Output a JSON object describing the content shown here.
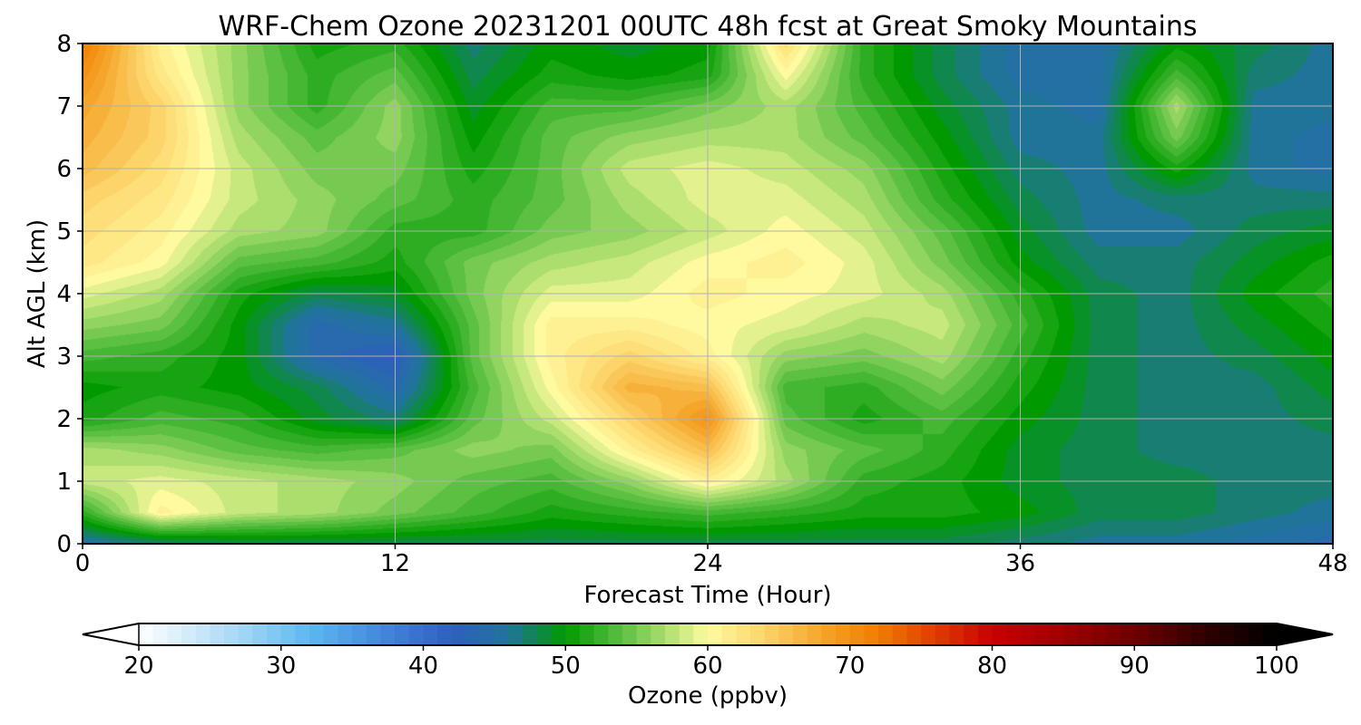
{
  "chart_data": {
    "type": "heatmap",
    "title": "WRF-Chem Ozone  20231201 00UTC 48h fcst at Great Smoky Mountains",
    "xlabel": "Forecast Time (Hour)",
    "ylabel": "Alt AGL (km)",
    "xlim": [
      0,
      48
    ],
    "ylim": [
      0,
      8
    ],
    "x_ticks": [
      "0",
      "12",
      "24",
      "36",
      "48"
    ],
    "y_ticks": [
      "0",
      "1",
      "2",
      "3",
      "4",
      "5",
      "6",
      "7",
      "8"
    ],
    "grid": true,
    "colorbar": {
      "label": "Ozone  (ppbv)",
      "range": [
        20,
        100
      ],
      "ticks": [
        "20",
        "30",
        "40",
        "50",
        "60",
        "70",
        "80",
        "90",
        "100"
      ],
      "extend": "both",
      "orientation": "horizontal",
      "stops": [
        {
          "v": 20,
          "c": "#ffffff"
        },
        {
          "v": 27,
          "c": "#a6d8f5"
        },
        {
          "v": 32,
          "c": "#5bb8f0"
        },
        {
          "v": 38,
          "c": "#3f7fd8"
        },
        {
          "v": 42,
          "c": "#2f5fc0"
        },
        {
          "v": 46,
          "c": "#20749a"
        },
        {
          "v": 50,
          "c": "#009a00"
        },
        {
          "v": 54,
          "c": "#5cc043"
        },
        {
          "v": 58,
          "c": "#c6e87c"
        },
        {
          "v": 60,
          "c": "#fffaa0"
        },
        {
          "v": 64,
          "c": "#fcd46a"
        },
        {
          "v": 68,
          "c": "#f5a52a"
        },
        {
          "v": 72,
          "c": "#f07d00"
        },
        {
          "v": 76,
          "c": "#e03c00"
        },
        {
          "v": 80,
          "c": "#c80000"
        },
        {
          "v": 85,
          "c": "#a00000"
        },
        {
          "v": 90,
          "c": "#6e0000"
        },
        {
          "v": 95,
          "c": "#300000"
        },
        {
          "v": 100,
          "c": "#000000"
        }
      ]
    },
    "ozone_ppbv_hours": [
      0,
      3,
      6,
      9,
      12,
      15,
      18,
      21,
      24,
      27,
      30,
      33,
      36,
      39,
      42,
      45,
      48
    ],
    "ozone_ppbv_altitudes_km": [
      0,
      0.5,
      1,
      1.5,
      2,
      2.5,
      3,
      3.5,
      4,
      4.5,
      5,
      5.5,
      6,
      6.5,
      7,
      7.5,
      8
    ],
    "ozone_ppbv_grid": [
      [
        45,
        47,
        48,
        48,
        48,
        48,
        48,
        48,
        48,
        48,
        48,
        48,
        47,
        46,
        46,
        45,
        44
      ],
      [
        52,
        61,
        58,
        57,
        55,
        53,
        51,
        52,
        53,
        52,
        51,
        51,
        50,
        48,
        48,
        47,
        46
      ],
      [
        58,
        59,
        58,
        57,
        56,
        54,
        53,
        56,
        61,
        57,
        52,
        51,
        49,
        48,
        48,
        47,
        47
      ],
      [
        57,
        56,
        54,
        53,
        54,
        56,
        55,
        61,
        66,
        56,
        54,
        52,
        49,
        48,
        47,
        47,
        47
      ],
      [
        51,
        53,
        52,
        49,
        47,
        54,
        58,
        64,
        70,
        54,
        51,
        53,
        50,
        48,
        47,
        47,
        48
      ],
      [
        50,
        51,
        50,
        48,
        44,
        53,
        60,
        67,
        66,
        53,
        52,
        55,
        51,
        48,
        47,
        47,
        49
      ],
      [
        53,
        52,
        50,
        44,
        42,
        54,
        61,
        64,
        61,
        56,
        55,
        57,
        52,
        48,
        47,
        48,
        50
      ],
      [
        56,
        55,
        50,
        44,
        46,
        54,
        61,
        61,
        60,
        59,
        57,
        58,
        53,
        48,
        47,
        49,
        51
      ],
      [
        59,
        57,
        51,
        48,
        49,
        55,
        59,
        59,
        61,
        60,
        59,
        57,
        52,
        48,
        47,
        50,
        52
      ],
      [
        62,
        60,
        54,
        53,
        51,
        55,
        57,
        58,
        60,
        61,
        59,
        55,
        50,
        47,
        47,
        49,
        51
      ],
      [
        63,
        61,
        57,
        56,
        52,
        52,
        55,
        56,
        58,
        60,
        58,
        54,
        49,
        46,
        46,
        48,
        49
      ],
      [
        64,
        62,
        58,
        56,
        54,
        52,
        54,
        57,
        59,
        59,
        57,
        52,
        48,
        46,
        47,
        47,
        47
      ],
      [
        66,
        63,
        58,
        55,
        55,
        51,
        54,
        58,
        59,
        58,
        56,
        51,
        47,
        46,
        51,
        46,
        45
      ],
      [
        67,
        64,
        57,
        54,
        56,
        50,
        54,
        56,
        57,
        57,
        54,
        50,
        46,
        46,
        55,
        46,
        45
      ],
      [
        68,
        64,
        56,
        52,
        56,
        49,
        53,
        53,
        55,
        57,
        53,
        49,
        46,
        45,
        57,
        46,
        46
      ],
      [
        70,
        62,
        56,
        52,
        54,
        48,
        51,
        50,
        51,
        60,
        52,
        48,
        45,
        45,
        53,
        47,
        46
      ],
      [
        72,
        61,
        56,
        51,
        52,
        47,
        50,
        49,
        50,
        63,
        52,
        48,
        45,
        45,
        50,
        48,
        46
      ]
    ]
  }
}
